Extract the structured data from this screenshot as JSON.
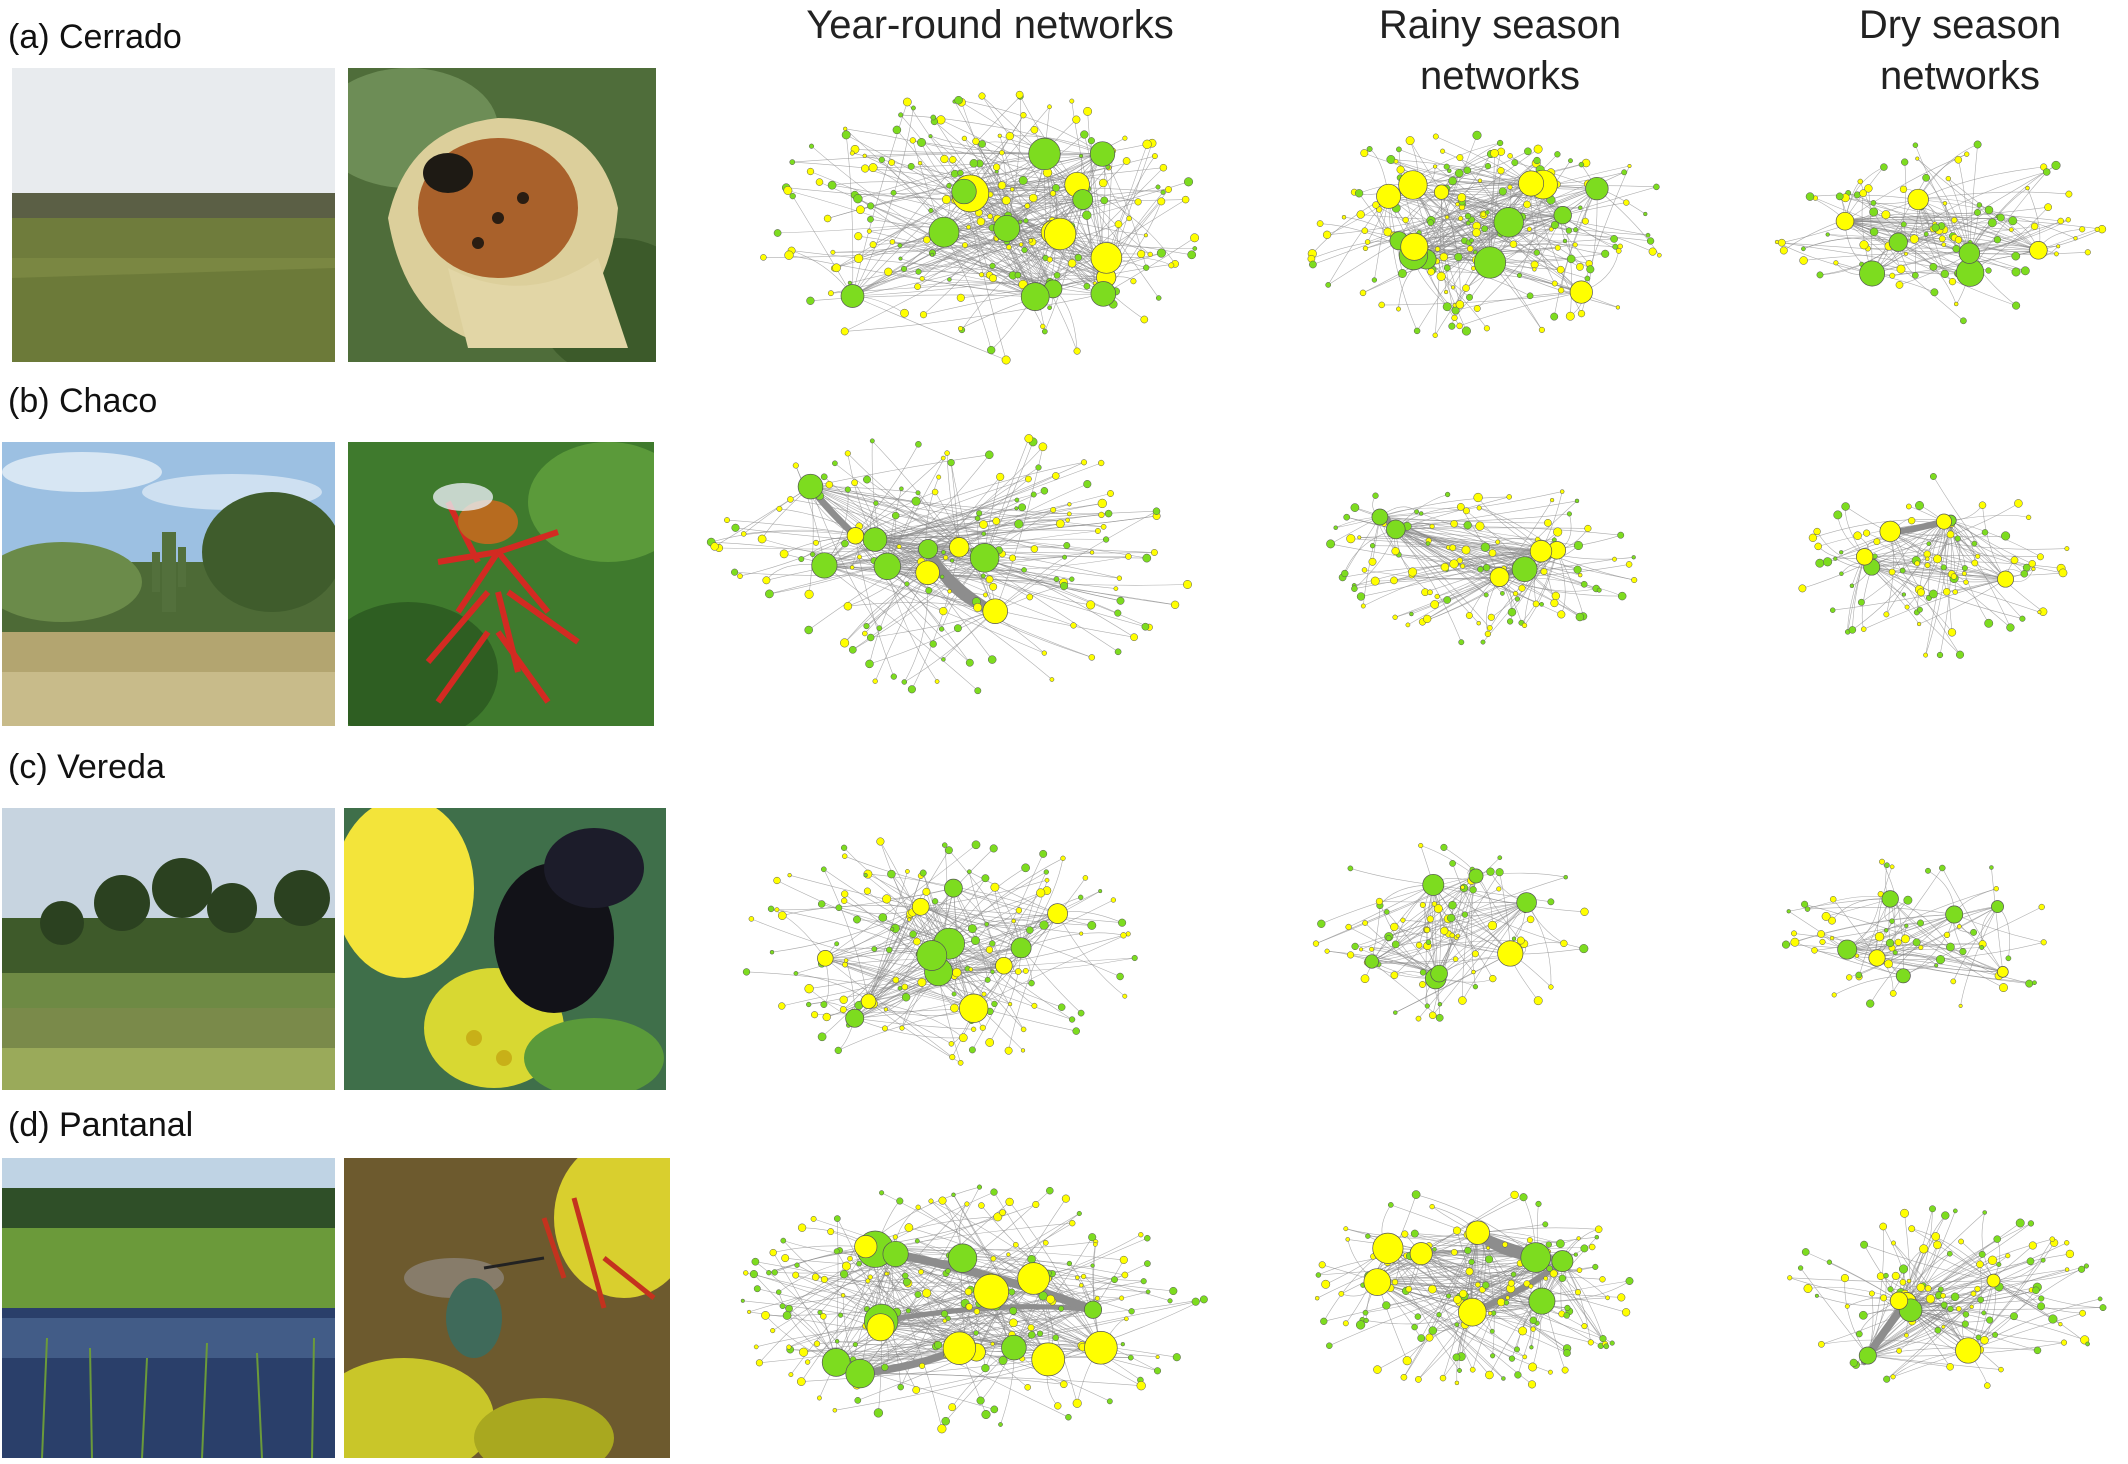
{
  "column_headers": [
    "Year-round networks",
    "Rainy season\nnetworks",
    "Dry season\nnetworks"
  ],
  "rows": [
    {
      "label": "(a) Cerrado",
      "landscape_scene": "savanna-grassland",
      "visitor_scene": "beetle-in-flower"
    },
    {
      "label": "(b) Chaco",
      "landscape_scene": "dry-forest-cactus",
      "visitor_scene": "bee-on-red-flower"
    },
    {
      "label": "(c) Vereda",
      "landscape_scene": "palm-swamp",
      "visitor_scene": "carpenter-bee-on-yellow-flower"
    },
    {
      "label": "(d) Pantanal",
      "landscape_scene": "flooded-wetland",
      "visitor_scene": "hummingbird"
    }
  ],
  "colors": {
    "plant_node": "#7ddc1f",
    "animal_node": "#ffff00",
    "node_stroke": "#555555",
    "link": "#8a8a8a"
  },
  "networks": [
    {
      "row": 0,
      "col": 0,
      "nodes": 230,
      "hubs": 16,
      "thick_links": 0,
      "big": 1.2
    },
    {
      "row": 0,
      "col": 1,
      "nodes": 190,
      "hubs": 14,
      "thick_links": 0,
      "big": 1.0
    },
    {
      "row": 0,
      "col": 2,
      "nodes": 110,
      "hubs": 8,
      "thick_links": 0,
      "big": 0.9
    },
    {
      "row": 1,
      "col": 0,
      "nodes": 170,
      "hubs": 10,
      "thick_links": 3,
      "big": 1.0
    },
    {
      "row": 1,
      "col": 1,
      "nodes": 120,
      "hubs": 6,
      "thick_links": 2,
      "big": 0.8
    },
    {
      "row": 1,
      "col": 2,
      "nodes": 90,
      "hubs": 6,
      "thick_links": 1,
      "big": 0.7
    },
    {
      "row": 2,
      "col": 0,
      "nodes": 160,
      "hubs": 12,
      "thick_links": 0,
      "big": 1.0
    },
    {
      "row": 2,
      "col": 1,
      "nodes": 90,
      "hubs": 7,
      "thick_links": 0,
      "big": 0.8
    },
    {
      "row": 2,
      "col": 2,
      "nodes": 70,
      "hubs": 7,
      "thick_links": 0,
      "big": 0.7
    },
    {
      "row": 3,
      "col": 0,
      "nodes": 220,
      "hubs": 16,
      "thick_links": 3,
      "big": 1.2
    },
    {
      "row": 3,
      "col": 1,
      "nodes": 160,
      "hubs": 8,
      "thick_links": 4,
      "big": 1.0
    },
    {
      "row": 3,
      "col": 2,
      "nodes": 120,
      "hubs": 6,
      "thick_links": 3,
      "big": 0.8
    }
  ]
}
